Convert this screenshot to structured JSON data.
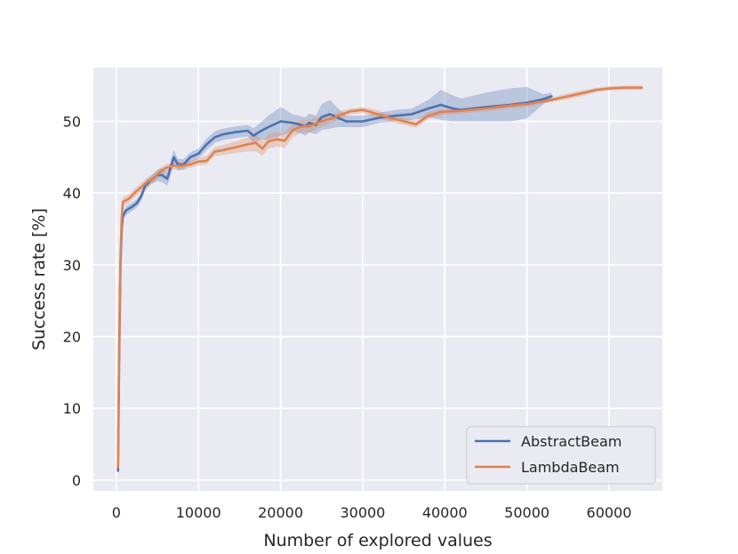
{
  "chart_data": {
    "type": "line",
    "xlabel": "Number of explored values",
    "ylabel": "Success rate [%]",
    "xlim": [
      -2800,
      66500
    ],
    "ylim": [
      -1.5,
      57.5
    ],
    "xticks": [
      0,
      10000,
      20000,
      30000,
      40000,
      50000,
      60000
    ],
    "xtick_labels": [
      "0",
      "10000",
      "20000",
      "30000",
      "40000",
      "50000",
      "60000"
    ],
    "yticks": [
      0,
      10,
      20,
      30,
      40,
      50
    ],
    "ytick_labels": [
      "0",
      "10",
      "20",
      "30",
      "40",
      "50"
    ],
    "grid": true,
    "legend_position": "lower-right",
    "colors": {
      "background": "#eaeaf2",
      "grid": "#ffffff",
      "AbstractBeam": "#4c72b0",
      "LambdaBeam": "#dd8452"
    },
    "series": [
      {
        "name": "AbstractBeam",
        "color": "#4c72b0",
        "points": [
          [
            200,
            1.3
          ],
          [
            350,
            18
          ],
          [
            500,
            30
          ],
          [
            650,
            35
          ],
          [
            800,
            36.8
          ],
          [
            1200,
            37.6
          ],
          [
            1800,
            38
          ],
          [
            2500,
            38.6
          ],
          [
            3000,
            39.5
          ],
          [
            3500,
            41
          ],
          [
            4200,
            41.8
          ],
          [
            5000,
            42.5
          ],
          [
            5600,
            42.5
          ],
          [
            6200,
            42
          ],
          [
            6600,
            43.5
          ],
          [
            7000,
            45
          ],
          [
            7500,
            44
          ],
          [
            8200,
            44
          ],
          [
            9000,
            45
          ],
          [
            10000,
            45.5
          ],
          [
            11000,
            46.8
          ],
          [
            12000,
            47.8
          ],
          [
            13000,
            48.2
          ],
          [
            14500,
            48.5
          ],
          [
            16000,
            48.7
          ],
          [
            16700,
            48
          ],
          [
            17500,
            48.6
          ],
          [
            18500,
            49.2
          ],
          [
            20000,
            50
          ],
          [
            21500,
            49.8
          ],
          [
            22500,
            49.5
          ],
          [
            23000,
            49.3
          ],
          [
            23500,
            49.8
          ],
          [
            24300,
            49.5
          ],
          [
            25000,
            50.6
          ],
          [
            26000,
            51
          ],
          [
            27000,
            50.5
          ],
          [
            28000,
            50
          ],
          [
            30000,
            50
          ],
          [
            32000,
            50.5
          ],
          [
            34000,
            50.8
          ],
          [
            36000,
            51
          ],
          [
            38000,
            51.8
          ],
          [
            39500,
            52.3
          ],
          [
            41000,
            51.8
          ],
          [
            42000,
            51.6
          ],
          [
            45000,
            52
          ],
          [
            48000,
            52.3
          ],
          [
            50000,
            52.6
          ],
          [
            52000,
            53.1
          ],
          [
            53000,
            53.5
          ]
        ],
        "band": [
          [
            200,
            1.3,
            1.3
          ],
          [
            350,
            17,
            19
          ],
          [
            500,
            29,
            31
          ],
          [
            650,
            34,
            36
          ],
          [
            800,
            36.2,
            37.4
          ],
          [
            1200,
            37,
            38.2
          ],
          [
            1800,
            37.4,
            38.6
          ],
          [
            2500,
            38,
            39.2
          ],
          [
            3000,
            38.9,
            40.1
          ],
          [
            3500,
            40.4,
            41.6
          ],
          [
            4200,
            41.2,
            42.4
          ],
          [
            5000,
            41.7,
            43.3
          ],
          [
            5600,
            41.5,
            43.5
          ],
          [
            6200,
            41,
            43
          ],
          [
            6600,
            42.5,
            44.5
          ],
          [
            7000,
            44,
            46
          ],
          [
            7500,
            43.2,
            44.8
          ],
          [
            8200,
            43.3,
            44.7
          ],
          [
            9000,
            44.3,
            45.7
          ],
          [
            10000,
            44.8,
            46.2
          ],
          [
            11000,
            46,
            47.6
          ],
          [
            12000,
            47,
            48.6
          ],
          [
            13000,
            47.4,
            49
          ],
          [
            14500,
            47.7,
            49.3
          ],
          [
            16000,
            47.9,
            49.5
          ],
          [
            16700,
            47,
            49
          ],
          [
            17500,
            47.4,
            49.8
          ],
          [
            18500,
            47.5,
            50.8
          ],
          [
            20000,
            48,
            52
          ],
          [
            21500,
            48.6,
            51
          ],
          [
            22500,
            48.3,
            50.7
          ],
          [
            23000,
            48,
            50.6
          ],
          [
            23500,
            48.5,
            51.1
          ],
          [
            24300,
            48.2,
            50.8
          ],
          [
            25000,
            48.8,
            52.4
          ],
          [
            26000,
            49,
            53
          ],
          [
            27000,
            49.2,
            51.8
          ],
          [
            28000,
            49.2,
            50.8
          ],
          [
            30000,
            49.2,
            50.8
          ],
          [
            32000,
            49.8,
            51.2
          ],
          [
            34000,
            50,
            51.6
          ],
          [
            36000,
            50.2,
            51.8
          ],
          [
            38000,
            50.6,
            53
          ],
          [
            39500,
            50.2,
            54.4
          ],
          [
            41000,
            50,
            53.6
          ],
          [
            42000,
            50,
            53.2
          ],
          [
            45000,
            50,
            54
          ],
          [
            48000,
            50,
            54.6
          ],
          [
            50000,
            50.4,
            54.8
          ],
          [
            52000,
            52.4,
            53.8
          ],
          [
            53000,
            53,
            54
          ]
        ]
      },
      {
        "name": "LambdaBeam",
        "color": "#dd8452",
        "points": [
          [
            200,
            1.8
          ],
          [
            350,
            20
          ],
          [
            500,
            31
          ],
          [
            650,
            36.5
          ],
          [
            800,
            38.8
          ],
          [
            1500,
            39.2
          ],
          [
            2200,
            40
          ],
          [
            3000,
            40.8
          ],
          [
            3800,
            41.6
          ],
          [
            4500,
            42
          ],
          [
            5200,
            42.8
          ],
          [
            6000,
            43.5
          ],
          [
            7000,
            43.8
          ],
          [
            8000,
            43.8
          ],
          [
            9000,
            44
          ],
          [
            10000,
            44.4
          ],
          [
            11000,
            44.5
          ],
          [
            12000,
            45.8
          ],
          [
            13000,
            46
          ],
          [
            14500,
            46.4
          ],
          [
            16000,
            46.8
          ],
          [
            17000,
            47
          ],
          [
            17800,
            46.2
          ],
          [
            18500,
            47.2
          ],
          [
            19500,
            47.5
          ],
          [
            20500,
            47.3
          ],
          [
            21500,
            48.8
          ],
          [
            22500,
            49.3
          ],
          [
            23500,
            49.3
          ],
          [
            24500,
            49.8
          ],
          [
            25500,
            50.2
          ],
          [
            26500,
            50.5
          ],
          [
            27500,
            51
          ],
          [
            28500,
            51.4
          ],
          [
            30000,
            51.6
          ],
          [
            31000,
            51.3
          ],
          [
            33000,
            50.6
          ],
          [
            35000,
            50
          ],
          [
            36500,
            49.6
          ],
          [
            38000,
            50.8
          ],
          [
            39500,
            51.3
          ],
          [
            42000,
            51.5
          ],
          [
            45000,
            51.8
          ],
          [
            48000,
            52.2
          ],
          [
            50000,
            52.4
          ],
          [
            53000,
            53
          ],
          [
            55000,
            53.5
          ],
          [
            57000,
            54
          ],
          [
            58500,
            54.4
          ],
          [
            60000,
            54.6
          ],
          [
            62000,
            54.7
          ],
          [
            64000,
            54.7
          ]
        ],
        "band": [
          [
            200,
            1.8,
            1.8
          ],
          [
            350,
            19,
            21
          ],
          [
            500,
            30,
            32
          ],
          [
            650,
            35.8,
            37.2
          ],
          [
            800,
            38.2,
            39.4
          ],
          [
            1500,
            38.6,
            39.8
          ],
          [
            2200,
            39.4,
            40.6
          ],
          [
            3000,
            40.2,
            41.4
          ],
          [
            3800,
            41,
            42.2
          ],
          [
            4500,
            41.4,
            42.6
          ],
          [
            5200,
            42.2,
            43.4
          ],
          [
            6000,
            43,
            44
          ],
          [
            7000,
            43.3,
            44.3
          ],
          [
            8000,
            43.2,
            44.4
          ],
          [
            9000,
            43.5,
            44.5
          ],
          [
            10000,
            43.9,
            44.9
          ],
          [
            11000,
            44,
            45.2
          ],
          [
            12000,
            45.2,
            46.4
          ],
          [
            13000,
            45.3,
            46.7
          ],
          [
            14500,
            45.6,
            47.2
          ],
          [
            16000,
            45.8,
            47.8
          ],
          [
            17000,
            45.8,
            48.2
          ],
          [
            17800,
            45.2,
            47.2
          ],
          [
            18500,
            46.2,
            48.2
          ],
          [
            19500,
            46.5,
            48.5
          ],
          [
            20500,
            46.3,
            48.3
          ],
          [
            21500,
            47.8,
            49.8
          ],
          [
            22500,
            48.4,
            50.2
          ],
          [
            23500,
            48.4,
            50.2
          ],
          [
            24500,
            49,
            50.6
          ],
          [
            25500,
            49.5,
            50.9
          ],
          [
            26500,
            49.9,
            51.1
          ],
          [
            27500,
            50.5,
            51.5
          ],
          [
            28500,
            51,
            51.8
          ],
          [
            30000,
            51.2,
            52
          ],
          [
            31000,
            50.8,
            51.8
          ],
          [
            33000,
            50.1,
            51.1
          ],
          [
            35000,
            49.5,
            50.5
          ],
          [
            36500,
            49.1,
            50.1
          ],
          [
            38000,
            50.3,
            51.3
          ],
          [
            39500,
            50.9,
            51.7
          ],
          [
            42000,
            51.1,
            51.9
          ],
          [
            45000,
            51.4,
            52.2
          ],
          [
            48000,
            51.8,
            52.6
          ],
          [
            50000,
            52,
            52.8
          ],
          [
            53000,
            52.7,
            53.3
          ],
          [
            55000,
            53.1,
            53.9
          ],
          [
            57000,
            53.6,
            54.4
          ],
          [
            58500,
            54.1,
            54.7
          ],
          [
            60000,
            54.3,
            54.9
          ],
          [
            62000,
            54.4,
            55
          ],
          [
            64000,
            54.4,
            55
          ]
        ]
      }
    ]
  }
}
